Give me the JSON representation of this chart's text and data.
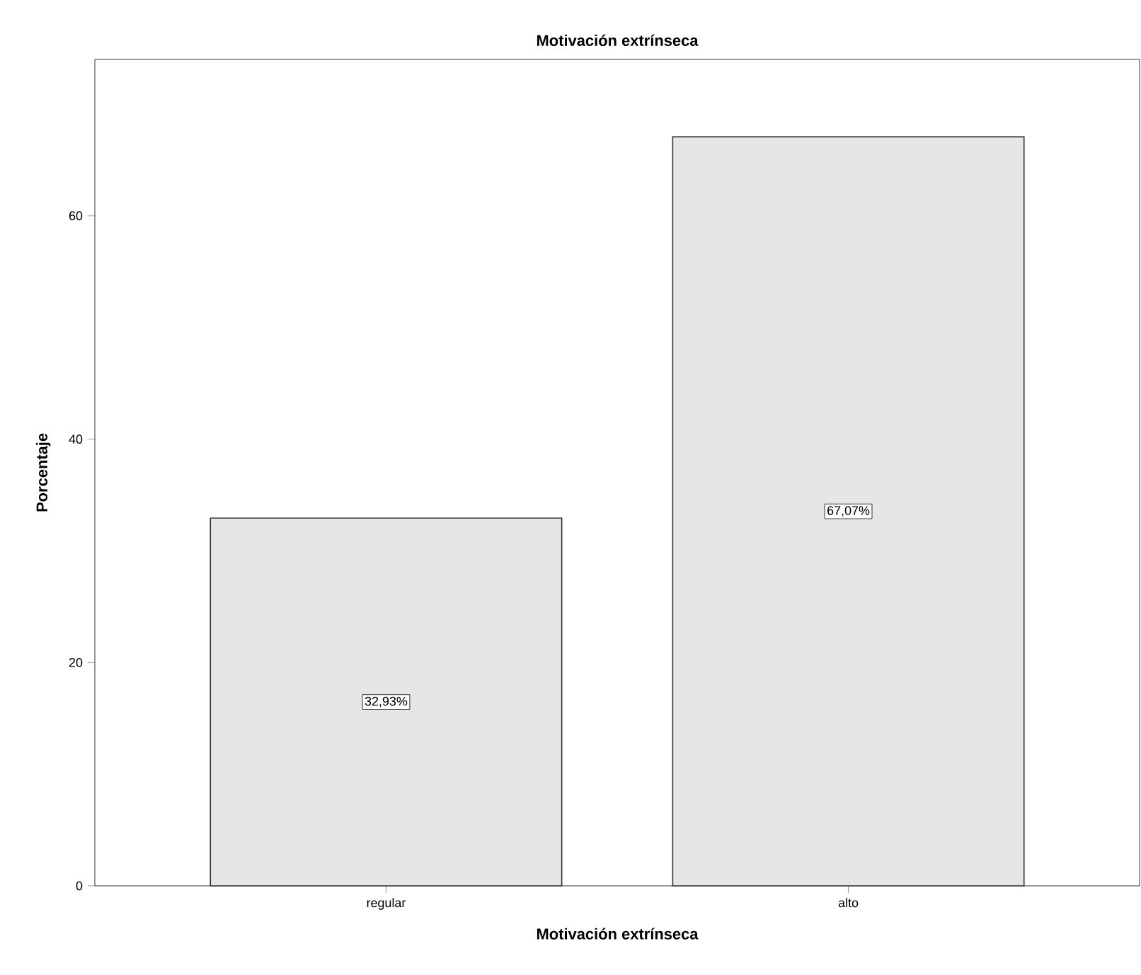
{
  "chart_data": {
    "type": "bar",
    "title": "Motivación extrínseca",
    "xlabel": "Motivación extrínseca",
    "ylabel": "Porcentaje",
    "categories": [
      "regular",
      "alto"
    ],
    "values": [
      32.93,
      67.07
    ],
    "value_labels": [
      "32,93%",
      "67,07%"
    ],
    "color": "#e6e6e6",
    "ylim": [
      0,
      74
    ],
    "yticks": [
      0,
      20,
      40,
      60
    ]
  }
}
